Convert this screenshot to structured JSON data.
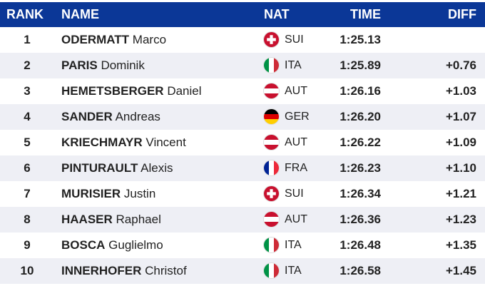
{
  "header": {
    "rank": "RANK",
    "name": "NAME",
    "nat": "NAT",
    "time": "TIME",
    "diff": "DIFF"
  },
  "colors": {
    "header_bg": "#0b3797",
    "alt_row": "#eeeff5"
  },
  "rows": [
    {
      "rank": "1",
      "last": "ODERMATT",
      "first": "Marco",
      "nat": "SUI",
      "flag": "flag-switzerland-icon",
      "time": "1:25.13",
      "diff": ""
    },
    {
      "rank": "2",
      "last": "PARIS",
      "first": "Dominik",
      "nat": "ITA",
      "flag": "flag-italy-icon",
      "time": "1:25.89",
      "diff": "+0.76"
    },
    {
      "rank": "3",
      "last": "HEMETSBERGER",
      "first": "Daniel",
      "nat": "AUT",
      "flag": "flag-austria-icon",
      "time": "1:26.16",
      "diff": "+1.03"
    },
    {
      "rank": "4",
      "last": "SANDER",
      "first": "Andreas",
      "nat": "GER",
      "flag": "flag-germany-icon",
      "time": "1:26.20",
      "diff": "+1.07"
    },
    {
      "rank": "5",
      "last": "KRIECHMAYR",
      "first": "Vincent",
      "nat": "AUT",
      "flag": "flag-austria-icon",
      "time": "1:26.22",
      "diff": "+1.09"
    },
    {
      "rank": "6",
      "last": "PINTURAULT",
      "first": "Alexis",
      "nat": "FRA",
      "flag": "flag-france-icon",
      "time": "1:26.23",
      "diff": "+1.10"
    },
    {
      "rank": "7",
      "last": "MURISIER",
      "first": "Justin",
      "nat": "SUI",
      "flag": "flag-switzerland-icon",
      "time": "1:26.34",
      "diff": "+1.21"
    },
    {
      "rank": "8",
      "last": "HAASER",
      "first": "Raphael",
      "nat": "AUT",
      "flag": "flag-austria-icon",
      "time": "1:26.36",
      "diff": "+1.23"
    },
    {
      "rank": "9",
      "last": "BOSCA",
      "first": "Guglielmo",
      "nat": "ITA",
      "flag": "flag-italy-icon",
      "time": "1:26.48",
      "diff": "+1.35"
    },
    {
      "rank": "10",
      "last": "INNERHOFER",
      "first": "Christof",
      "nat": "ITA",
      "flag": "flag-italy-icon",
      "time": "1:26.58",
      "diff": "+1.45"
    }
  ]
}
